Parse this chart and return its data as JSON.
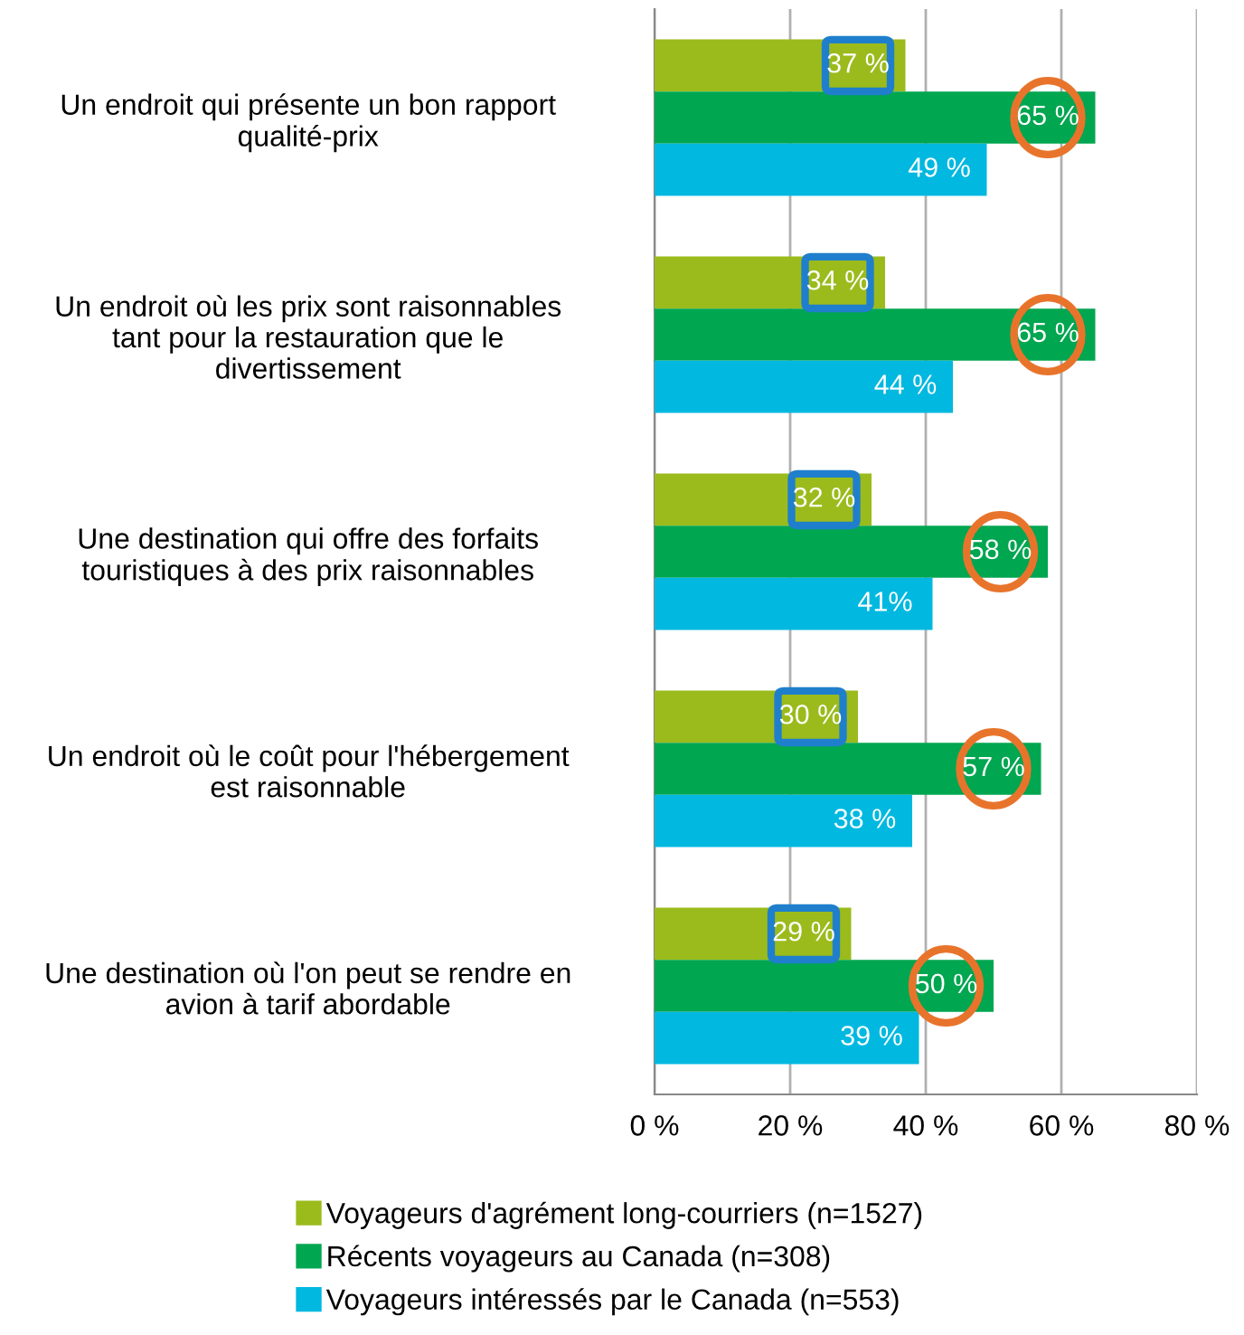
{
  "chart_data": {
    "type": "bar",
    "orientation": "horizontal",
    "categories": [
      "Un endroit qui présente un bon rapport\nqualité-prix",
      "Un endroit où les prix sont raisonnables\ntant pour la restauration que le\ndivertissement",
      "Une destination qui offre des forfaits\ntouristiques à des prix raisonnables",
      "Un endroit où le coût pour l'hébergement\nest raisonnable",
      "Une destination où l'on peut se rendre en\navion à tarif abordable"
    ],
    "series": [
      {
        "name": "Voyageurs d'agrément long-courriers (n=1527)",
        "color": "#9bbb1c",
        "values": [
          37,
          34,
          32,
          30,
          29
        ],
        "value_labels": [
          "37 %",
          "34 %",
          "32 %",
          "30 %",
          "29 %"
        ]
      },
      {
        "name": "Récents voyageurs au Canada (n=308)",
        "color": "#00a650",
        "values": [
          65,
          65,
          58,
          57,
          50
        ],
        "value_labels": [
          "65 %",
          "65 %",
          "58 %",
          "57 %",
          "50 %"
        ]
      },
      {
        "name": "Voyageurs intéressés par le Canada (n=553)",
        "color": "#00b8e0",
        "values": [
          49,
          44,
          41,
          38,
          39
        ],
        "value_labels": [
          "49 %",
          "44 %",
          "41%",
          "38 %",
          "39 %"
        ]
      }
    ],
    "xlim": [
      0,
      80
    ],
    "xticks": [
      {
        "value": 0,
        "label": "0 %"
      },
      {
        "value": 20,
        "label": "20 %"
      },
      {
        "value": 40,
        "label": "40 %"
      },
      {
        "value": 60,
        "label": "60 %"
      },
      {
        "value": 80,
        "label": "80 %"
      }
    ],
    "grid": "x",
    "legend": "bottom"
  }
}
